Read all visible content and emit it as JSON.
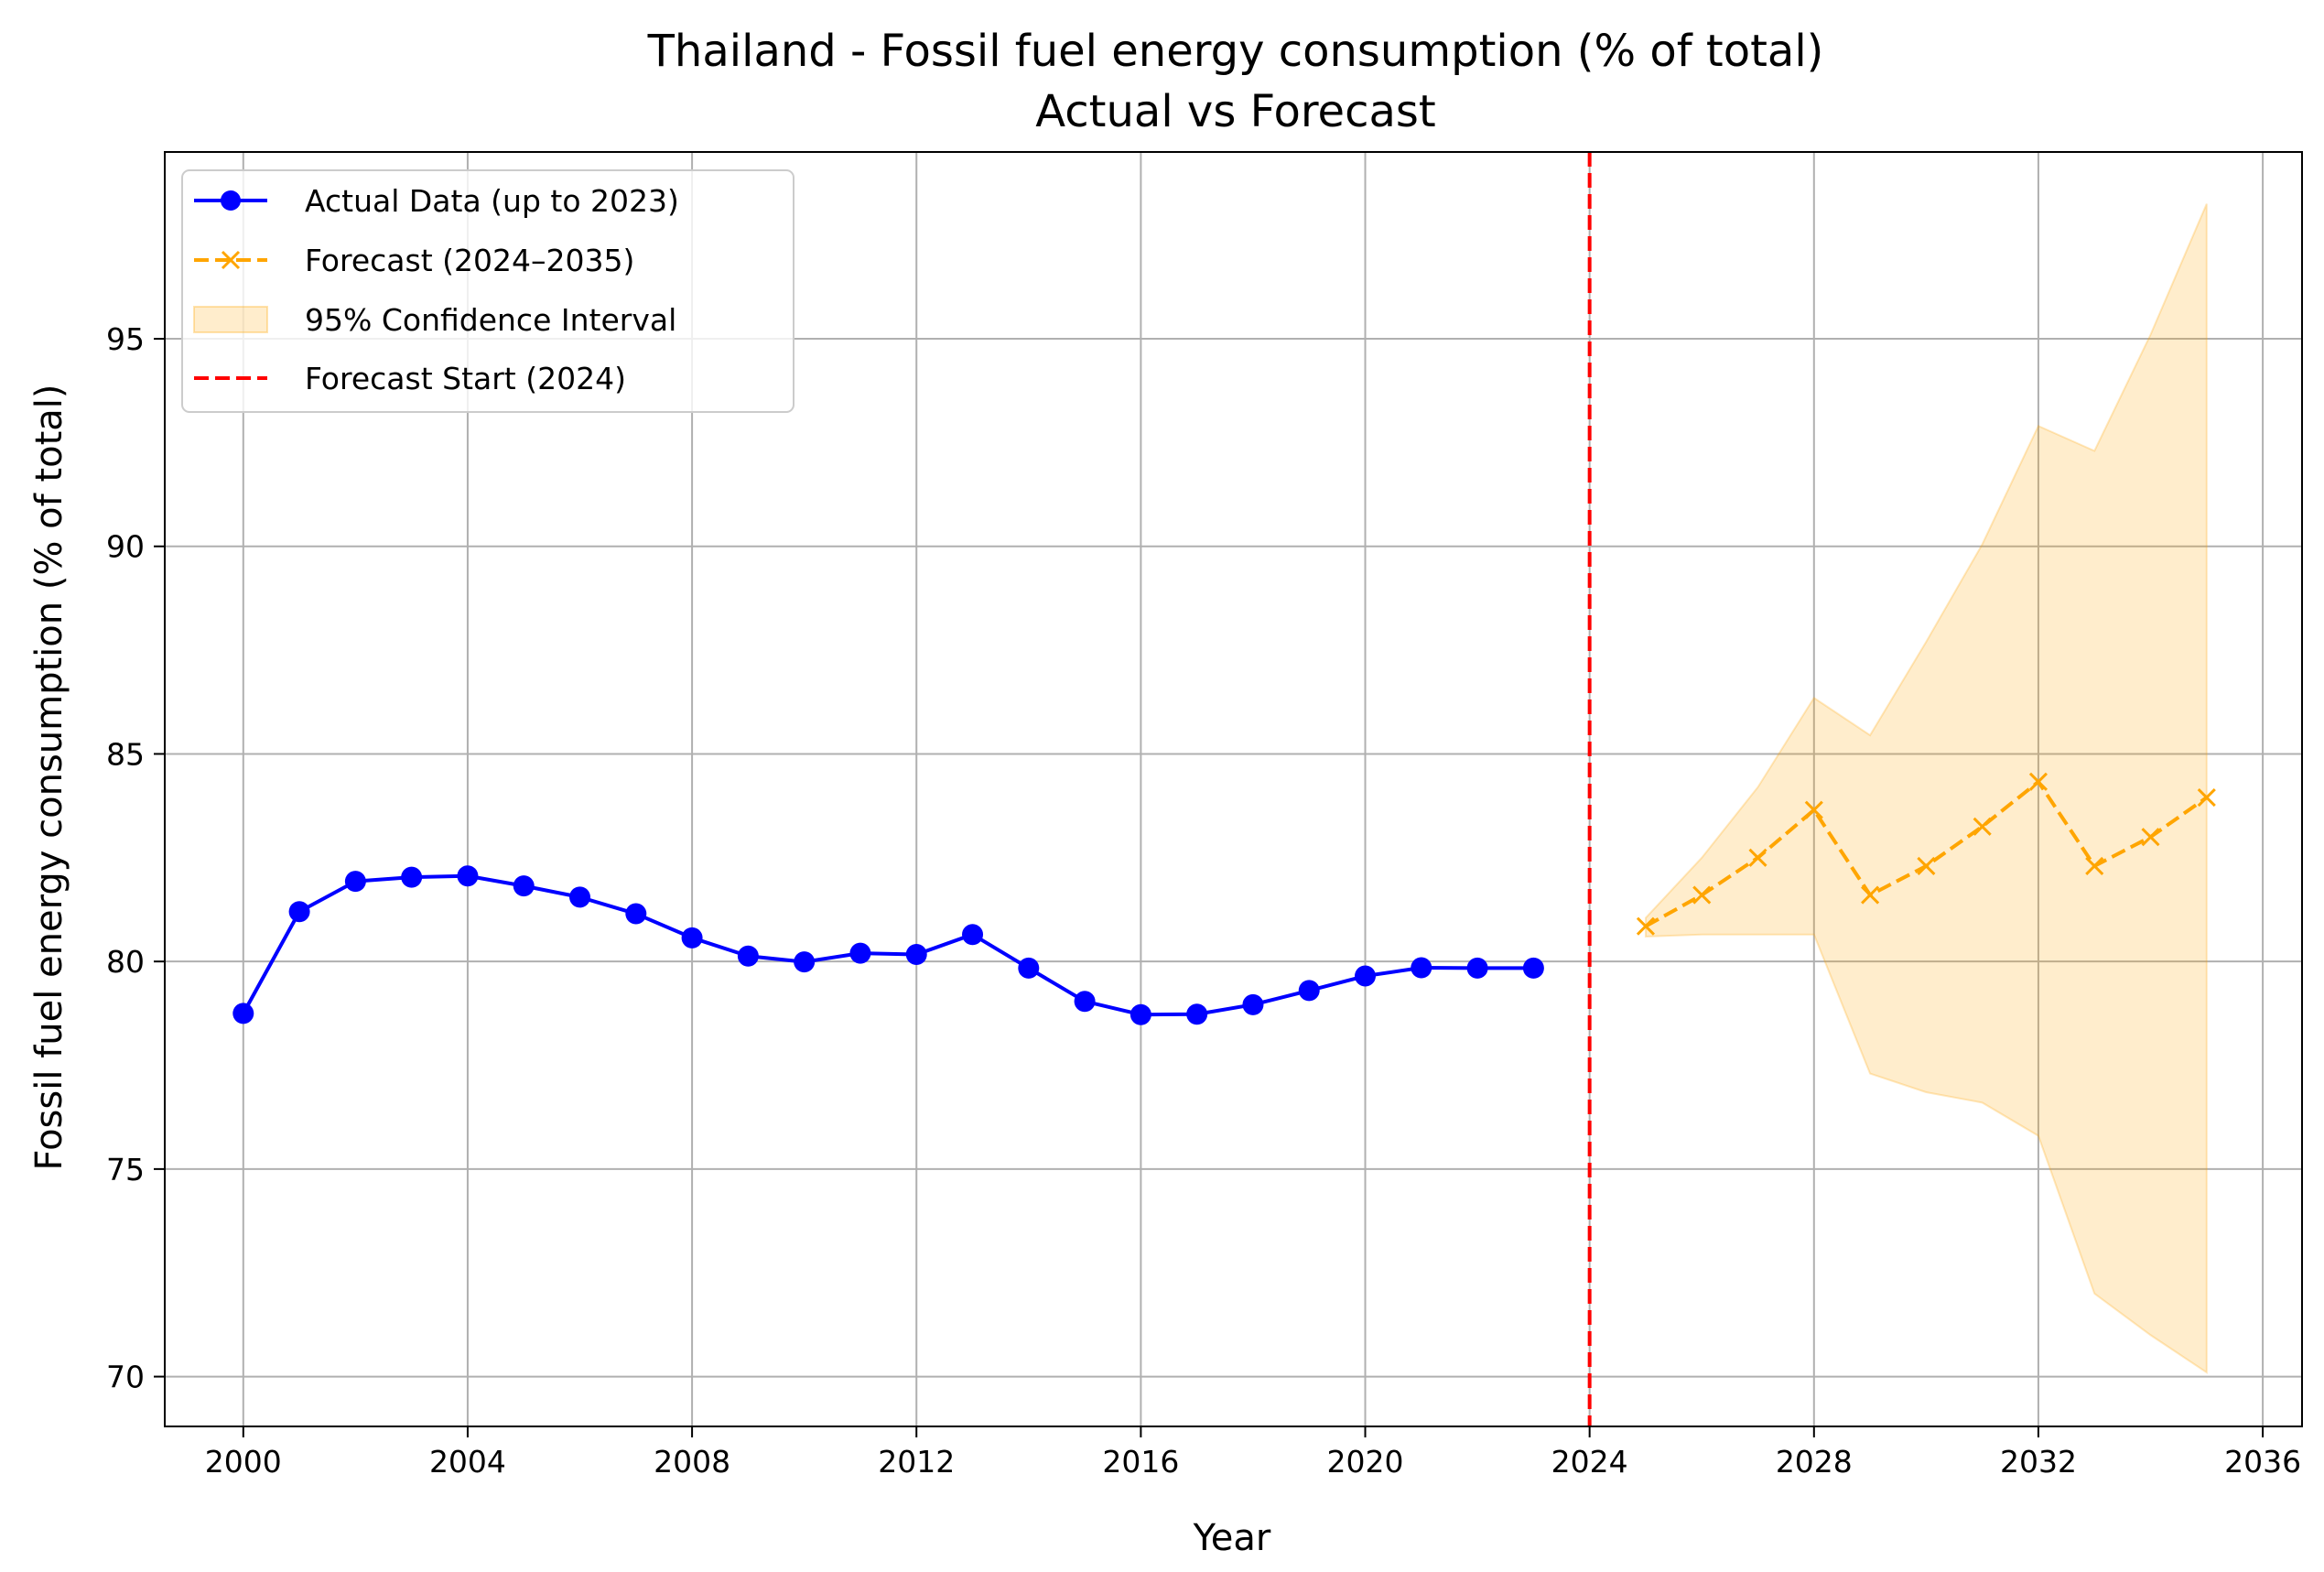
{
  "chart_data": {
    "type": "line",
    "title": "Thailand - Fossil fuel energy consumption (% of total)",
    "subtitle": "Actual vs Forecast",
    "xlabel": "Year",
    "ylabel": "Fossil fuel energy consumption (% of total)",
    "xlim": [
      1998.6,
      2036.7
    ],
    "ylim": [
      68.8,
      99.5
    ],
    "xticks": [
      2000,
      2004,
      2008,
      2012,
      2016,
      2020,
      2024,
      2028,
      2032,
      2036
    ],
    "yticks": [
      70,
      75,
      80,
      85,
      90,
      95
    ],
    "grid": true,
    "legend_position": "upper-left",
    "series": [
      {
        "name": "Actual Data (up to 2023)",
        "color": "#0000ff",
        "marker": "circle",
        "line_style": "solid",
        "x": [
          2000,
          2001,
          2002,
          2003,
          2004,
          2005,
          2006,
          2007,
          2008,
          2009,
          2010,
          2011,
          2012,
          2013,
          2014,
          2015,
          2016,
          2017,
          2018,
          2019,
          2020,
          2021,
          2022,
          2023
        ],
        "y": [
          78.75,
          81.2,
          81.93,
          82.03,
          82.06,
          81.82,
          81.55,
          81.15,
          80.57,
          80.13,
          79.99,
          80.2,
          80.17,
          80.65,
          79.84,
          79.04,
          78.72,
          78.73,
          78.96,
          79.3,
          79.65,
          79.85,
          79.84,
          79.84
        ]
      },
      {
        "name": "Forecast (2024–2035)",
        "color": "#ffa500",
        "marker": "x",
        "line_style": "dashed",
        "x": [
          2025,
          2026,
          2027,
          2028,
          2029,
          2030,
          2031,
          2032,
          2033,
          2034,
          2035
        ],
        "y": [
          80.85,
          81.6,
          82.5,
          83.65,
          81.6,
          82.3,
          83.25,
          84.33,
          82.3,
          83.0,
          83.95
        ]
      }
    ],
    "confidence_interval": {
      "name": "95% Confidence Interval",
      "color": "#ffa500",
      "x": [
        2025,
        2026,
        2027,
        2028,
        2029,
        2030,
        2031,
        2032,
        2033,
        2034,
        2035
      ],
      "lower": [
        80.6,
        80.65,
        80.65,
        80.65,
        77.3,
        76.85,
        76.6,
        75.8,
        72.0,
        71.0,
        70.1
      ],
      "upper": [
        81.05,
        82.5,
        84.2,
        86.35,
        85.45,
        87.7,
        90.05,
        92.9,
        92.3,
        95.1,
        98.25
      ]
    },
    "forecast_start": {
      "name": "Forecast Start (2024)",
      "x": 2024,
      "color": "#ff0000",
      "line_style": "dashed"
    }
  }
}
